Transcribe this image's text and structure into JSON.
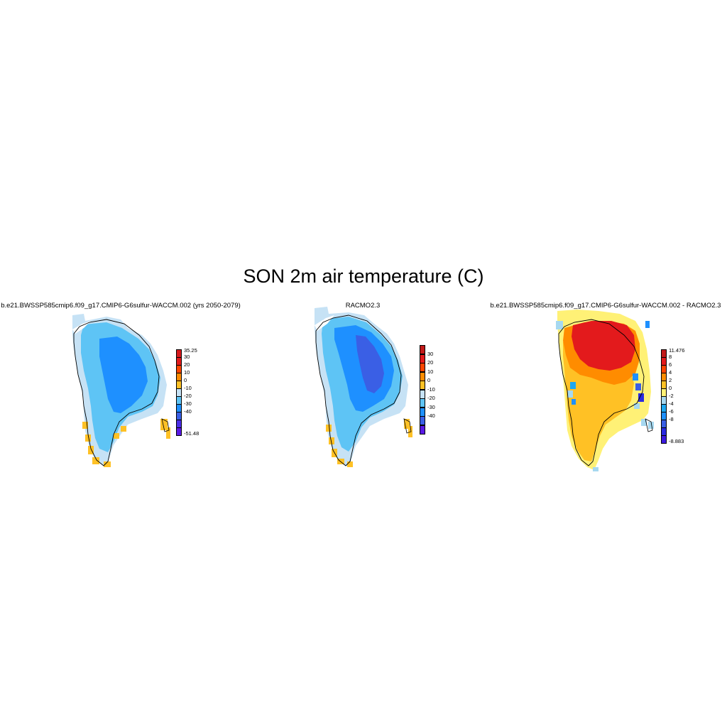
{
  "title": "SON 2m air temperature (C)",
  "panels": [
    {
      "title": "b.e21.BWSSP585cmip6.f09_g17.CMIP6-G6sulfur-WACCM.002 (yrs 2050-2079)",
      "colorbar": {
        "labels": [
          "35.25",
          "30",
          "20",
          "10",
          "0",
          "-10",
          "-20",
          "-30",
          "-40",
          "-51.48"
        ],
        "colors": [
          "#d7191c",
          "#e31a1c",
          "#ff4500",
          "#ff8c00",
          "#ffc125",
          "#c6e2f5",
          "#5ec4f5",
          "#1e90ff",
          "#3a5fe5",
          "#4b2ee8",
          "#5a1ae6"
        ]
      }
    },
    {
      "title": "RACMO2.3",
      "colorbar": {
        "labels": [
          "30",
          "20",
          "10",
          "0",
          "-10",
          "-20",
          "-30",
          "-40"
        ],
        "colors": [
          "#c21a1a",
          "#e31a1c",
          "#ff4500",
          "#ff8c00",
          "#ffc125",
          "#c6e2f5",
          "#5ec4f5",
          "#1e90ff",
          "#3a5fe5",
          "#5a1ae6"
        ]
      }
    },
    {
      "title": "b.e21.BWSSP585cmip6.f09_g17.CMIP6-G6sulfur-WACCM.002 - RACMO2.3",
      "colorbar": {
        "labels": [
          "11.476",
          "8",
          "6",
          "4",
          "2",
          "0",
          "-2",
          "-4",
          "-6",
          "-8",
          "-8.883"
        ],
        "colors": [
          "#c21a1a",
          "#e31a1c",
          "#ff4500",
          "#ff8c00",
          "#ffc125",
          "#fff176",
          "#a6d8f0",
          "#1ea7f0",
          "#1e90ff",
          "#3a5fe5",
          "#2a2ae0",
          "#3b1ae0"
        ]
      }
    }
  ]
}
